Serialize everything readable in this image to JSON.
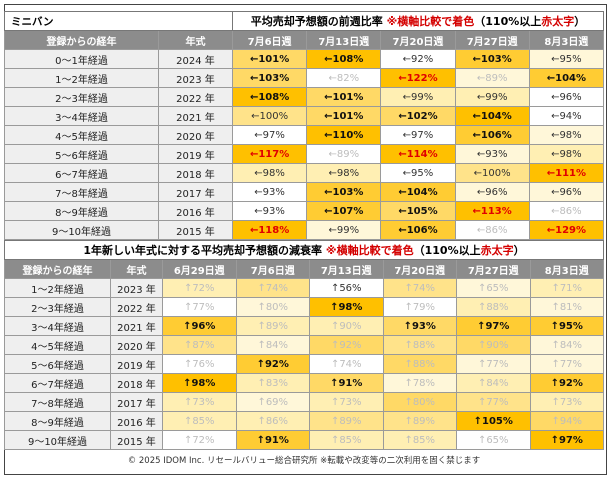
{
  "table1": {
    "corner": "ミニバン",
    "title": "平均売却予想額の前週比率",
    "note_prefix": "※横軸比較で着色",
    "note_rest": "（110%以上",
    "note_red": "赤太字",
    "note_end": "）",
    "col_age": "登録からの経年",
    "col_year": "年式",
    "columns": [
      "7月6日週",
      "7月13日週",
      "7月20日週",
      "7月27日週",
      "8月3日週"
    ],
    "rows": [
      {
        "age": "0～1年経過",
        "year": "2024 年",
        "cells": [
          [
            "←101%",
            "c4",
            "b"
          ],
          [
            "←108%",
            "c6",
            "b"
          ],
          [
            "←92%",
            "c0",
            "n"
          ],
          [
            "←103%",
            "c5",
            "b"
          ],
          [
            "←95%",
            "c1",
            "n"
          ]
        ]
      },
      {
        "age": "1～2年経過",
        "year": "2023 年",
        "cells": [
          [
            "←103%",
            "c4",
            "b"
          ],
          [
            "←82%",
            "c0",
            "g"
          ],
          [
            "←122%",
            "c6",
            "red"
          ],
          [
            "←89%",
            "c1",
            "g"
          ],
          [
            "←104%",
            "c5",
            "b"
          ]
        ]
      },
      {
        "age": "2～3年経過",
        "year": "2022 年",
        "cells": [
          [
            "←108%",
            "c6",
            "b"
          ],
          [
            "←101%",
            "c4",
            "b"
          ],
          [
            "←99%",
            "c2",
            "n"
          ],
          [
            "←99%",
            "c2",
            "n"
          ],
          [
            "←96%",
            "c0",
            "n"
          ]
        ]
      },
      {
        "age": "3～4年経過",
        "year": "2021 年",
        "cells": [
          [
            "←100%",
            "c3",
            "n"
          ],
          [
            "←101%",
            "c4",
            "b"
          ],
          [
            "←102%",
            "c4",
            "b"
          ],
          [
            "←104%",
            "c6",
            "b"
          ],
          [
            "←94%",
            "c0",
            "n"
          ]
        ]
      },
      {
        "age": "4～5年経過",
        "year": "2020 年",
        "cells": [
          [
            "←97%",
            "c0",
            "n"
          ],
          [
            "←110%",
            "c6",
            "b"
          ],
          [
            "←97%",
            "c0",
            "n"
          ],
          [
            "←106%",
            "c5",
            "b"
          ],
          [
            "←98%",
            "c1",
            "n"
          ]
        ]
      },
      {
        "age": "5～6年経過",
        "year": "2019 年",
        "cells": [
          [
            "←117%",
            "c6",
            "red"
          ],
          [
            "←89%",
            "c0",
            "g"
          ],
          [
            "←114%",
            "c6",
            "red"
          ],
          [
            "←93%",
            "c1",
            "n"
          ],
          [
            "←98%",
            "c2",
            "n"
          ]
        ]
      },
      {
        "age": "6～7年経過",
        "year": "2018 年",
        "cells": [
          [
            "←98%",
            "c2",
            "n"
          ],
          [
            "←98%",
            "c2",
            "n"
          ],
          [
            "←95%",
            "c0",
            "n"
          ],
          [
            "←100%",
            "c3",
            "n"
          ],
          [
            "←111%",
            "c6",
            "red"
          ]
        ]
      },
      {
        "age": "7～8年経過",
        "year": "2017 年",
        "cells": [
          [
            "←93%",
            "c0",
            "n"
          ],
          [
            "←103%",
            "c5",
            "b"
          ],
          [
            "←104%",
            "c5",
            "b"
          ],
          [
            "←96%",
            "c1",
            "n"
          ],
          [
            "←96%",
            "c1",
            "n"
          ]
        ]
      },
      {
        "age": "8～9年経過",
        "year": "2016 年",
        "cells": [
          [
            "←93%",
            "c0",
            "n"
          ],
          [
            "←107%",
            "c5",
            "b"
          ],
          [
            "←105%",
            "c4",
            "b"
          ],
          [
            "←113%",
            "c6",
            "red"
          ],
          [
            "←86%",
            "c0",
            "g"
          ]
        ]
      },
      {
        "age": "9～10年経過",
        "year": "2015 年",
        "cells": [
          [
            "←118%",
            "c6",
            "red"
          ],
          [
            "←99%",
            "c1",
            "n"
          ],
          [
            "←106%",
            "c5",
            "b"
          ],
          [
            "←86%",
            "c0",
            "g"
          ],
          [
            "←129%",
            "c6",
            "red"
          ]
        ]
      }
    ]
  },
  "table2": {
    "title_a": "1年新しい年式に対する平均売却予想額の減衰率",
    "note_prefix": "※横軸比較で着色",
    "note_rest": "（110%以上",
    "note_red": "赤太字",
    "note_end": "）",
    "col_age": "登録からの経年",
    "col_year": "年式",
    "columns": [
      "6月29日週",
      "7月6日週",
      "7月13日週",
      "7月20日週",
      "7月27日週",
      "8月3日週"
    ],
    "rows": [
      {
        "age": "1～2年経過",
        "year": "2023 年",
        "cells": [
          [
            "↑72%",
            "c2",
            "g"
          ],
          [
            "↑74%",
            "c3",
            "g"
          ],
          [
            "↑56%",
            "c0",
            "n"
          ],
          [
            "↑74%",
            "c3",
            "g"
          ],
          [
            "↑65%",
            "c1",
            "g"
          ],
          [
            "↑71%",
            "c2",
            "g"
          ]
        ]
      },
      {
        "age": "2～3年経過",
        "year": "2022 年",
        "cells": [
          [
            "↑77%",
            "c0",
            "g"
          ],
          [
            "↑80%",
            "c1",
            "g"
          ],
          [
            "↑98%",
            "c6",
            "b"
          ],
          [
            "↑79%",
            "c0",
            "g"
          ],
          [
            "↑88%",
            "c2",
            "g"
          ],
          [
            "↑81%",
            "c1",
            "g"
          ]
        ]
      },
      {
        "age": "3～4年経過",
        "year": "2021 年",
        "cells": [
          [
            "↑96%",
            "c5",
            "b"
          ],
          [
            "↑89%",
            "c2",
            "g"
          ],
          [
            "↑90%",
            "c2",
            "g"
          ],
          [
            "↑93%",
            "c4",
            "b"
          ],
          [
            "↑97%",
            "c5",
            "b"
          ],
          [
            "↑95%",
            "c5",
            "b"
          ]
        ]
      },
      {
        "age": "4～5年経過",
        "year": "2020 年",
        "cells": [
          [
            "↑87%",
            "c3",
            "g"
          ],
          [
            "↑84%",
            "c1",
            "g"
          ],
          [
            "↑92%",
            "c4",
            "g"
          ],
          [
            "↑88%",
            "c3",
            "g"
          ],
          [
            "↑90%",
            "c4",
            "g"
          ],
          [
            "↑84%",
            "c1",
            "g"
          ]
        ]
      },
      {
        "age": "5～6年経過",
        "year": "2019 年",
        "cells": [
          [
            "↑76%",
            "c0",
            "g"
          ],
          [
            "↑92%",
            "c5",
            "b"
          ],
          [
            "↑74%",
            "c0",
            "g"
          ],
          [
            "↑88%",
            "c4",
            "g"
          ],
          [
            "↑77%",
            "c1",
            "g"
          ],
          [
            "↑77%",
            "c1",
            "g"
          ]
        ]
      },
      {
        "age": "6～7年経過",
        "year": "2018 年",
        "cells": [
          [
            "↑98%",
            "c6",
            "b"
          ],
          [
            "↑83%",
            "c2",
            "g"
          ],
          [
            "↑91%",
            "c4",
            "b"
          ],
          [
            "↑78%",
            "c1",
            "g"
          ],
          [
            "↑84%",
            "c2",
            "g"
          ],
          [
            "↑92%",
            "c5",
            "b"
          ]
        ]
      },
      {
        "age": "7～8年経過",
        "year": "2017 年",
        "cells": [
          [
            "↑73%",
            "c2",
            "g"
          ],
          [
            "↑69%",
            "c1",
            "g"
          ],
          [
            "↑73%",
            "c2",
            "g"
          ],
          [
            "↑80%",
            "c4",
            "g"
          ],
          [
            "↑77%",
            "c3",
            "g"
          ],
          [
            "↑73%",
            "c2",
            "g"
          ]
        ]
      },
      {
        "age": "8～9年経過",
        "year": "2016 年",
        "cells": [
          [
            "↑85%",
            "c2",
            "g"
          ],
          [
            "↑86%",
            "c2",
            "g"
          ],
          [
            "↑89%",
            "c3",
            "g"
          ],
          [
            "↑89%",
            "c3",
            "g"
          ],
          [
            "↑105%",
            "c6",
            "b"
          ],
          [
            "↑94%",
            "c4",
            "g"
          ]
        ]
      },
      {
        "age": "9～10年経過",
        "year": "2015 年",
        "cells": [
          [
            "↑72%",
            "c0",
            "g"
          ],
          [
            "↑91%",
            "c5",
            "b"
          ],
          [
            "↑85%",
            "c2",
            "g"
          ],
          [
            "↑85%",
            "c2",
            "g"
          ],
          [
            "↑65%",
            "c0",
            "g"
          ],
          [
            "↑97%",
            "c6",
            "b"
          ]
        ]
      }
    ]
  },
  "footer": "© 2025 IDOM Inc. リセールバリュー総合研究所 ※転載や改変等の二次利用を固く禁じます"
}
